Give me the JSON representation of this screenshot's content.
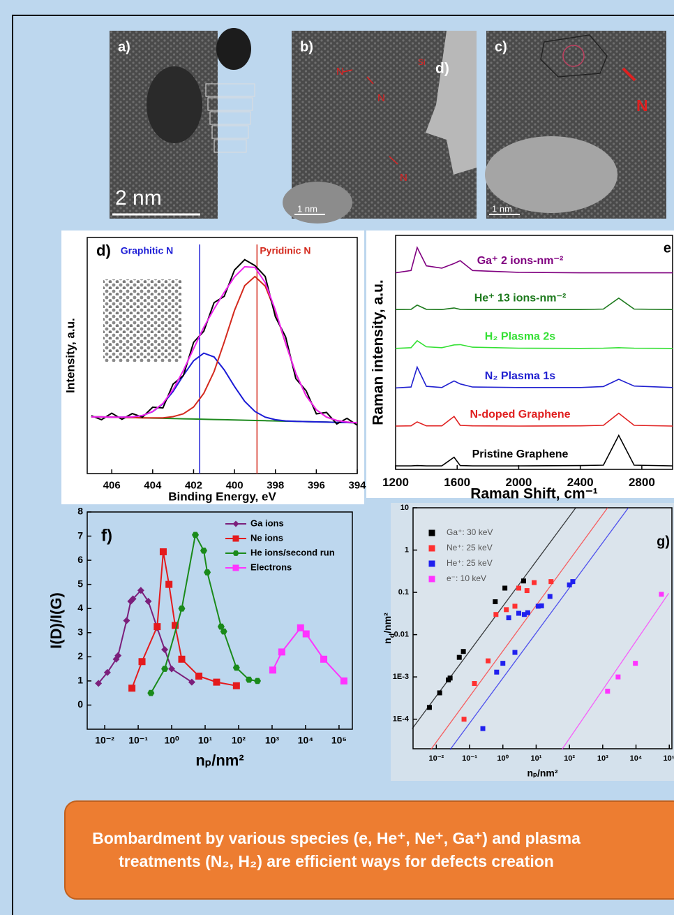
{
  "images": [
    {
      "label": "a)",
      "scale": "2 nm"
    },
    {
      "label": "b)",
      "scale": "1 nm",
      "annotations": [
        "N",
        "N",
        "N",
        "Si",
        "d)"
      ]
    },
    {
      "label": "c)",
      "scale": "1 nm",
      "annotations": [
        "N"
      ]
    }
  ],
  "chart_data": [
    {
      "type": "line",
      "label": "d)",
      "xlabel": "Binding Energy, eV",
      "ylabel": "Intensity, a.u.",
      "xlim": [
        407.2,
        394
      ],
      "xticks": [
        406,
        404,
        402,
        400,
        398,
        396,
        394
      ],
      "ylim": [
        0,
        100
      ],
      "x": [
        407,
        406.5,
        406,
        405.5,
        405,
        404.5,
        404,
        403.5,
        403,
        402.5,
        402,
        401.5,
        401,
        400.5,
        400,
        399.5,
        399,
        398.5,
        398,
        397.5,
        397,
        396.5,
        396,
        395.5,
        395,
        394.5,
        394
      ],
      "series": [
        {
          "color": "#1f8a1f",
          "values": [
            24,
            24,
            23.9,
            23.8,
            23.7,
            23.6,
            23.5,
            23.4,
            23.3,
            23.2,
            23.1,
            23,
            22.9,
            22.8,
            22.7,
            22.6,
            22.5,
            22.4,
            22.3,
            22.2,
            22.1,
            22,
            21.9,
            21.8,
            21.7,
            21.6,
            21.5
          ]
        },
        {
          "color": "#1c1cd6",
          "values": [
            24,
            24,
            23.9,
            23.9,
            24.0,
            24.6,
            26.2,
            29.5,
            34.8,
            41.6,
            47.8,
            51.0,
            49.4,
            43.9,
            36.9,
            30.6,
            26.3,
            23.9,
            22.8,
            22.3,
            22.1,
            22,
            21.9,
            21.8,
            21.7,
            21.6,
            21.5
          ]
        },
        {
          "color": "#d42a1e",
          "values": [
            24,
            24,
            23.9,
            23.8,
            23.7,
            23.6,
            23.6,
            23.6,
            24.1,
            25.3,
            28.2,
            34.0,
            43.2,
            55.7,
            69.1,
            79.6,
            83.5,
            79.4,
            68.7,
            55.1,
            42.4,
            33.0,
            27.0,
            23.9,
            22.5,
            21.8,
            21.5
          ]
        },
        {
          "color": "#000000",
          "values": [
            24.5,
            22.8,
            25.6,
            23.0,
            25.4,
            23.9,
            28.1,
            27.8,
            37.9,
            41.5,
            55.6,
            60.3,
            72.4,
            75.1,
            86.2,
            90.6,
            88.1,
            83.5,
            66.4,
            57.9,
            40.2,
            35.1,
            25.3,
            25.9,
            21.0,
            23.4,
            20.5
          ]
        },
        {
          "color": "#ee22ee",
          "values": [
            24,
            24,
            23.9,
            23.9,
            24.0,
            24.6,
            26.3,
            29.7,
            35.6,
            43.7,
            52.9,
            62.0,
            69.7,
            76.8,
            83.3,
            87.6,
            87.3,
            80.9,
            69.2,
            55.2,
            42.4,
            33.0,
            27.0,
            23.9,
            22.5,
            21.8,
            21.5
          ]
        }
      ],
      "markers": [
        {
          "name": "Graphitic N",
          "x": 401.7,
          "color": "#1c1cd6"
        },
        {
          "name": "Pyridinic N",
          "x": 398.9,
          "color": "#d42a1e"
        }
      ]
    },
    {
      "type": "line",
      "label": "e",
      "xlabel": "Raman Shift, cm⁻¹",
      "ylabel": "Raman intensity, a.u.",
      "xlim": [
        1200,
        3000
      ],
      "xticks": [
        1200,
        1600,
        2000,
        2400,
        2800
      ],
      "ylim": [
        0,
        100
      ],
      "x": [
        1200,
        1300,
        1340,
        1400,
        1500,
        1580,
        1620,
        1700,
        2000,
        2400,
        2550,
        2650,
        2750,
        3000
      ],
      "series": [
        {
          "name": "Ga⁺ 2 ions-nm⁻²",
          "color": "#800080",
          "values": [
            84,
            85,
            94.8,
            87,
            86,
            88,
            89.2,
            85,
            84.2,
            84,
            84,
            84,
            84,
            84
          ]
        },
        {
          "name": "He⁺ 13 ions-nm⁻²",
          "color": "#1d7a1d",
          "values": [
            68.3,
            68.4,
            70.2,
            68.4,
            68.3,
            69,
            68.4,
            68.3,
            68.3,
            68.3,
            68.5,
            73.2,
            68.5,
            68.3
          ]
        },
        {
          "name": "H₂ Plasma 2s",
          "color": "#33e033",
          "values": [
            51.7,
            52,
            55,
            52.4,
            52,
            53.2,
            53.3,
            52.2,
            51.8,
            51.7,
            51.8,
            52,
            51.8,
            51.7
          ]
        },
        {
          "name": "N₂ Plasma 1s",
          "color": "#2020d0",
          "values": [
            34.8,
            35.2,
            43.7,
            35.5,
            35,
            37.8,
            36.5,
            35.2,
            35,
            35,
            35.4,
            38.5,
            35.6,
            35
          ]
        },
        {
          "name": "N-doped Graphene",
          "color": "#e02020",
          "values": [
            18.5,
            18.6,
            20.3,
            18.6,
            18.6,
            22.6,
            18.8,
            18.6,
            18.5,
            18.6,
            18.8,
            24,
            18.8,
            18.5
          ]
        },
        {
          "name": "Pristine Graphene",
          "color": "#000000",
          "values": [
            1.5,
            1.5,
            1.6,
            1.5,
            1.5,
            5.2,
            1.6,
            1.5,
            1.5,
            1.6,
            1.8,
            14.5,
            1.8,
            1.5
          ]
        }
      ]
    },
    {
      "type": "line",
      "label": "f)",
      "xlabel": "nₚ/nm²",
      "ylabel": "I(D)/I(G)",
      "xscale": "log",
      "xlim": [
        0.003,
        250000
      ],
      "xticks": [
        {
          "value": 0.01,
          "label": "10⁻²"
        },
        {
          "value": 0.1,
          "label": "10⁻¹"
        },
        {
          "value": 1,
          "label": "10⁰"
        },
        {
          "value": 10,
          "label": "10¹"
        },
        {
          "value": 100,
          "label": "10²"
        },
        {
          "value": 1000,
          "label": "10³"
        },
        {
          "value": 10000,
          "label": "10⁴"
        },
        {
          "value": 100000,
          "label": "10⁵"
        }
      ],
      "ylim": [
        -1,
        8
      ],
      "yticks": [
        0,
        1,
        2,
        3,
        4,
        5,
        6,
        7,
        8
      ],
      "legend": "upper right",
      "series": [
        {
          "name": "Ga ions",
          "color": "#7b1f7b",
          "marker": "diamond",
          "x": [
            0.0065,
            0.012,
            0.022,
            0.025,
            0.045,
            0.06,
            0.07,
            0.12,
            0.2,
            0.37,
            0.62,
            1,
            4
          ],
          "values": [
            0.9,
            1.35,
            1.9,
            2.05,
            3.5,
            4.3,
            4.4,
            4.75,
            4.3,
            3.2,
            2.3,
            1.5,
            0.95
          ]
        },
        {
          "name": "Ne ions",
          "color": "#e41a1c",
          "marker": "square",
          "x": [
            0.065,
            0.13,
            0.37,
            0.56,
            0.83,
            1.27,
            2,
            6.5,
            22,
            86
          ],
          "values": [
            0.7,
            1.8,
            3.25,
            6.35,
            5.0,
            3.3,
            1.9,
            1.2,
            0.95,
            0.8
          ]
        },
        {
          "name": "He ions/second run",
          "color": "#1a8a1a",
          "marker": "hexagon",
          "x": [
            0.24,
            0.62,
            2,
            5.1,
            9.1,
            11.6,
            30,
            36,
            86,
            205,
            365
          ],
          "values": [
            0.5,
            1.5,
            4.0,
            7.05,
            6.4,
            5.5,
            3.25,
            3.05,
            1.55,
            1.05,
            1.0
          ]
        },
        {
          "name": "Electrons",
          "color": "#ff33ff",
          "marker": "square",
          "x": [
            1050,
            1950,
            7100,
            10400,
            35000,
            140000
          ],
          "values": [
            1.45,
            2.2,
            3.2,
            2.95,
            1.9,
            1.0
          ]
        }
      ]
    },
    {
      "type": "scatter",
      "label": "g)",
      "xlabel": "nₚ/nm²",
      "ylabel": [
        "n",
        "d",
        "/nm²"
      ],
      "xscale": "log",
      "yscale": "log",
      "xlim": [
        0.002,
        120000
      ],
      "xticks": [
        {
          "value": 0.01,
          "label": "10⁻²"
        },
        {
          "value": 0.1,
          "label": "10⁻¹"
        },
        {
          "value": 1,
          "label": "10⁰"
        },
        {
          "value": 10,
          "label": "10¹"
        },
        {
          "value": 100,
          "label": "10²"
        },
        {
          "value": 1000,
          "label": "10³"
        },
        {
          "value": 10000,
          "label": "10⁴"
        },
        {
          "value": 100000,
          "label": "10⁵"
        }
      ],
      "ylim": [
        2e-05,
        10
      ],
      "yticks": [
        10,
        1,
        0.1,
        0.01,
        {
          "value": 0.001,
          "label": "1E-3"
        },
        {
          "value": 0.0001,
          "label": "1E-4"
        }
      ],
      "legend": "upper left",
      "series": [
        {
          "name": "Ga⁺: 30 keV",
          "color": "#000000",
          "x": [
            0.0062,
            0.0126,
            0.023,
            0.026,
            0.049,
            0.065,
            0.59,
            1.15,
            4.2
          ],
          "values": [
            0.00019,
            0.00042,
            0.00085,
            0.00094,
            0.0029,
            0.004,
            0.06,
            0.126,
            0.186
          ],
          "fit": {
            "x": [
              0.0019,
              155
            ],
            "values": [
              6e-05,
              10
            ]
          }
        },
        {
          "name": "Ne⁺: 25 keV",
          "color": "#ff3030",
          "x": [
            0.068,
            0.14,
            0.36,
            0.62,
            1.27,
            2.3,
            3.0,
            5.3,
            8.7,
            28
          ],
          "values": [
            0.0001,
            0.0007,
            0.0024,
            0.03,
            0.039,
            0.047,
            0.126,
            0.11,
            0.17,
            0.18
          ],
          "fit": {
            "x": [
              0.0068,
              1400
            ],
            "values": [
              1.9e-05,
              10
            ]
          }
        },
        {
          "name": "He⁺: 25 keV",
          "color": "#2020ee",
          "x": [
            0.25,
            0.65,
            1.0,
            2.3,
            1.5,
            3.0,
            4.4,
            5.6,
            11.5,
            14.5,
            26,
            100,
            126
          ],
          "values": [
            6e-05,
            0.0013,
            0.0021,
            0.0038,
            0.025,
            0.032,
            0.03,
            0.033,
            0.047,
            0.048,
            0.08,
            0.15,
            0.18
          ],
          "fit": {
            "x": [
              0.026,
              5900
            ],
            "values": [
              1.9e-05,
              10
            ]
          }
        },
        {
          "name": "e⁻: 10 keV",
          "color": "#ff33ff",
          "x": [
            1400,
            2900,
            9600,
            58000
          ],
          "values": [
            0.00046,
            0.001,
            0.0021,
            0.09
          ],
          "fit": {
            "x": [
              59,
              96000
            ],
            "values": [
              1.9e-05,
              0.095
            ]
          }
        }
      ]
    }
  ],
  "conclusion": "Bombardment by various species (e, He⁺, Ne⁺, Ga⁺) and plasma treatments (N₂, H₂) are efficient ways for defects creation"
}
